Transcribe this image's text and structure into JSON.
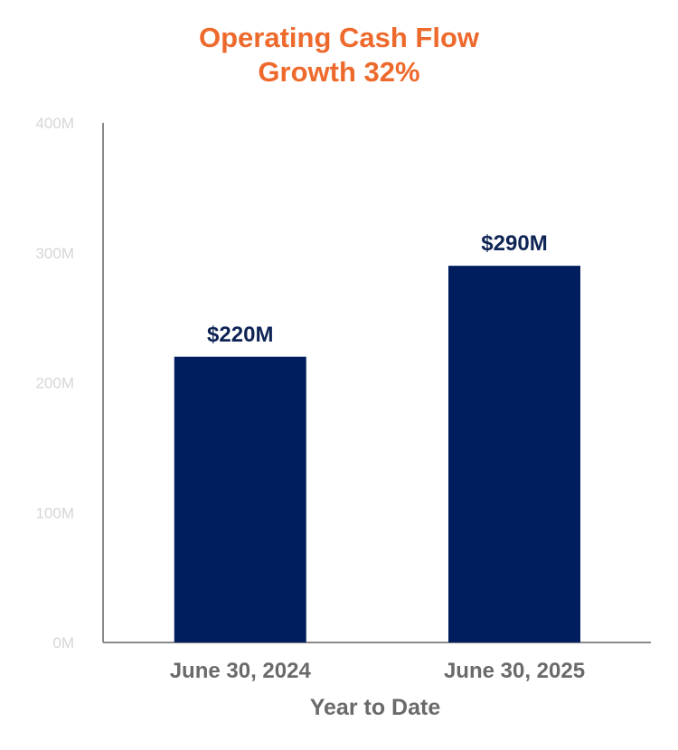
{
  "chart_data": {
    "type": "bar",
    "title": [
      "Operating Cash Flow",
      "Growth 32%"
    ],
    "categories": [
      "June 30, 2024",
      "June 30, 2025"
    ],
    "values": [
      220,
      290
    ],
    "data_labels": [
      "$220M",
      "$290M"
    ],
    "xlabel": "Year to Date",
    "ylabel": "",
    "ylim": [
      0,
      400
    ],
    "yticks": [
      0,
      100,
      200,
      300,
      400
    ],
    "ytick_labels": [
      "0M",
      "100M",
      "200M",
      "300M",
      "400M"
    ],
    "grid": false,
    "legend": "none"
  },
  "colors": {
    "title": "#EE6A2C",
    "bar": "#001E5E",
    "data_label": "#0E2455",
    "axis": "#8A8A8A",
    "ytick": "#D6D6D6",
    "xtick": "#6A6A6A"
  }
}
